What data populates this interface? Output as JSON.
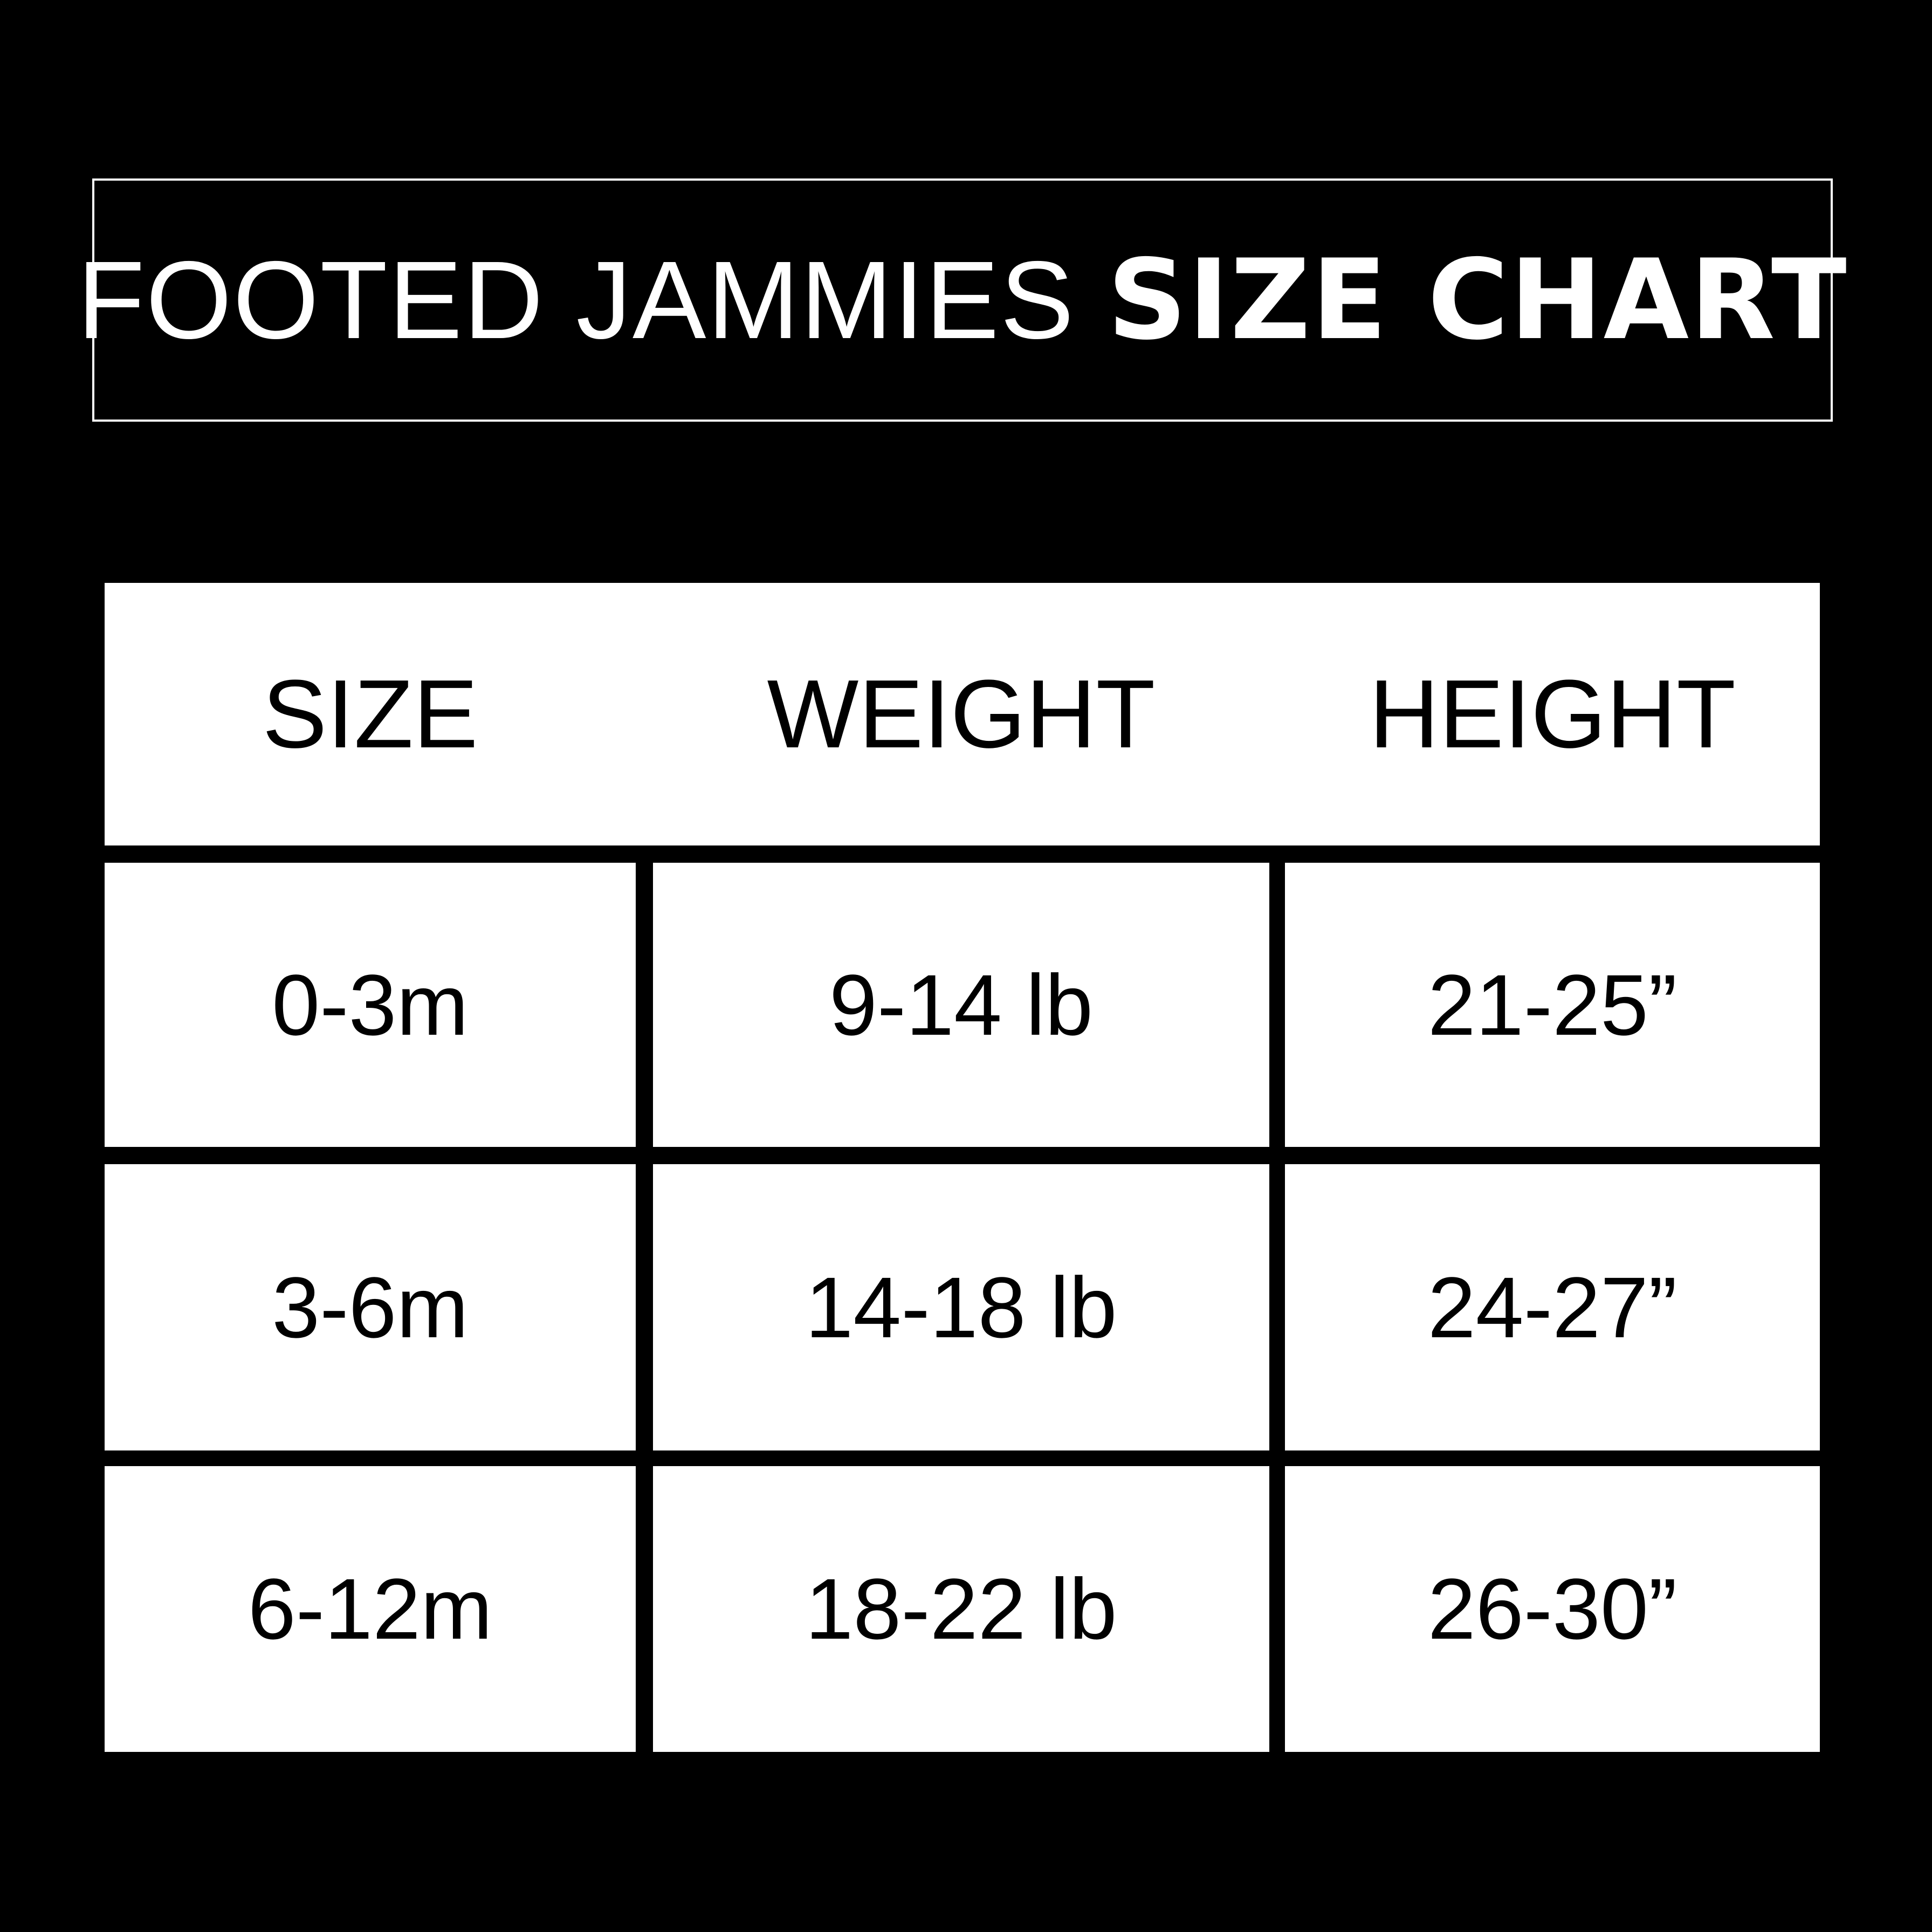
{
  "title": {
    "light": "FOOTED JAMMIES",
    "bold": "SIZE CHART"
  },
  "table": {
    "headers": [
      "SIZE",
      "WEIGHT",
      "HEIGHT"
    ],
    "rows": [
      [
        "0-3m",
        "9-14 lb",
        "21-25”"
      ],
      [
        "3-6m",
        "14-18 lb",
        "24-27”"
      ],
      [
        "6-12m",
        "18-22 lb",
        "26-30”"
      ]
    ]
  },
  "colors": {
    "background": "#000000",
    "cell": "#ffffff",
    "text": "#000000"
  }
}
